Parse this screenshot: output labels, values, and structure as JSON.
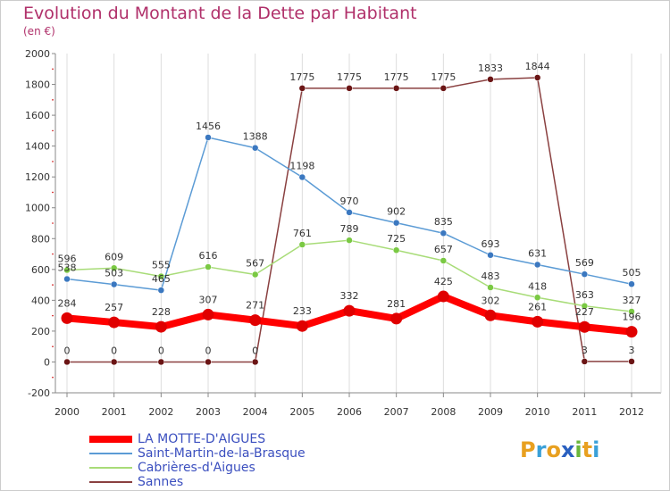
{
  "title": "Evolution du Montant de la Dette par Habitant",
  "unit": "(en €)",
  "logo": {
    "letters": [
      "P",
      "r",
      "o",
      "x",
      "i",
      "t",
      "i"
    ],
    "colors": [
      "#e8a020",
      "#3aa0d8",
      "#e8a020",
      "#2a60c0",
      "#6ab63a",
      "#e8a020",
      "#3aa0d8"
    ]
  },
  "chart_data": {
    "type": "line",
    "x": [
      "2000",
      "2001",
      "2002",
      "2003",
      "2004",
      "2005",
      "2006",
      "2007",
      "2008",
      "2009",
      "2010",
      "2011",
      "2012"
    ],
    "ylim": [
      -200,
      2000
    ],
    "yticks": [
      -200,
      0,
      200,
      400,
      600,
      800,
      1000,
      1200,
      1400,
      1600,
      1800,
      2000
    ],
    "ytick_labels": [
      "-200",
      "0",
      "200",
      "400",
      "600",
      "800",
      "1000",
      "1200",
      "1400",
      "1600",
      "1800",
      "2000"
    ],
    "grid": "vertical",
    "legend_position": "bottom-left",
    "series": [
      {
        "name": "LA MOTTE-D'AIGUES",
        "color": "#ff0000",
        "marker": "#e00000",
        "width": 8,
        "values": [
          284,
          257,
          228,
          307,
          271,
          233,
          332,
          281,
          425,
          302,
          261,
          227,
          196
        ],
        "labels": [
          "284",
          "257",
          "228",
          "307",
          "271",
          "233",
          "332",
          "281",
          "425",
          "302",
          "261",
          "227",
          "196"
        ]
      },
      {
        "name": "Saint-Martin-de-la-Brasque",
        "color": "#5b9bd5",
        "marker": "#3b78c0",
        "width": 1.5,
        "values": [
          538,
          503,
          465,
          1456,
          1388,
          1198,
          970,
          902,
          835,
          693,
          631,
          569,
          505
        ],
        "labels": [
          "538",
          "503",
          "465",
          "1456",
          "1388",
          "1198",
          "970",
          "902",
          "835",
          "693",
          "631",
          "569",
          "505"
        ]
      },
      {
        "name": "Cabrières-d'Aigues",
        "color": "#a8dc78",
        "marker": "#7ac943",
        "width": 1.5,
        "values": [
          596,
          609,
          555,
          616,
          567,
          761,
          789,
          725,
          657,
          483,
          418,
          363,
          327
        ],
        "labels": [
          "596",
          "609",
          "555",
          "616",
          "567",
          "761",
          "789",
          "725",
          "657",
          "483",
          "418",
          "363",
          "327"
        ]
      },
      {
        "name": "Sannes",
        "color": "#8a4040",
        "marker": "#6b1515",
        "width": 1.5,
        "values": [
          0,
          0,
          0,
          0,
          0,
          1775,
          1775,
          1775,
          1775,
          1833,
          1844,
          3,
          3
        ],
        "labels": [
          "0",
          "0",
          "0",
          "0",
          "0",
          "1775",
          "1775",
          "1775",
          "1775",
          "1833",
          "1844",
          "3",
          "3"
        ]
      }
    ]
  }
}
